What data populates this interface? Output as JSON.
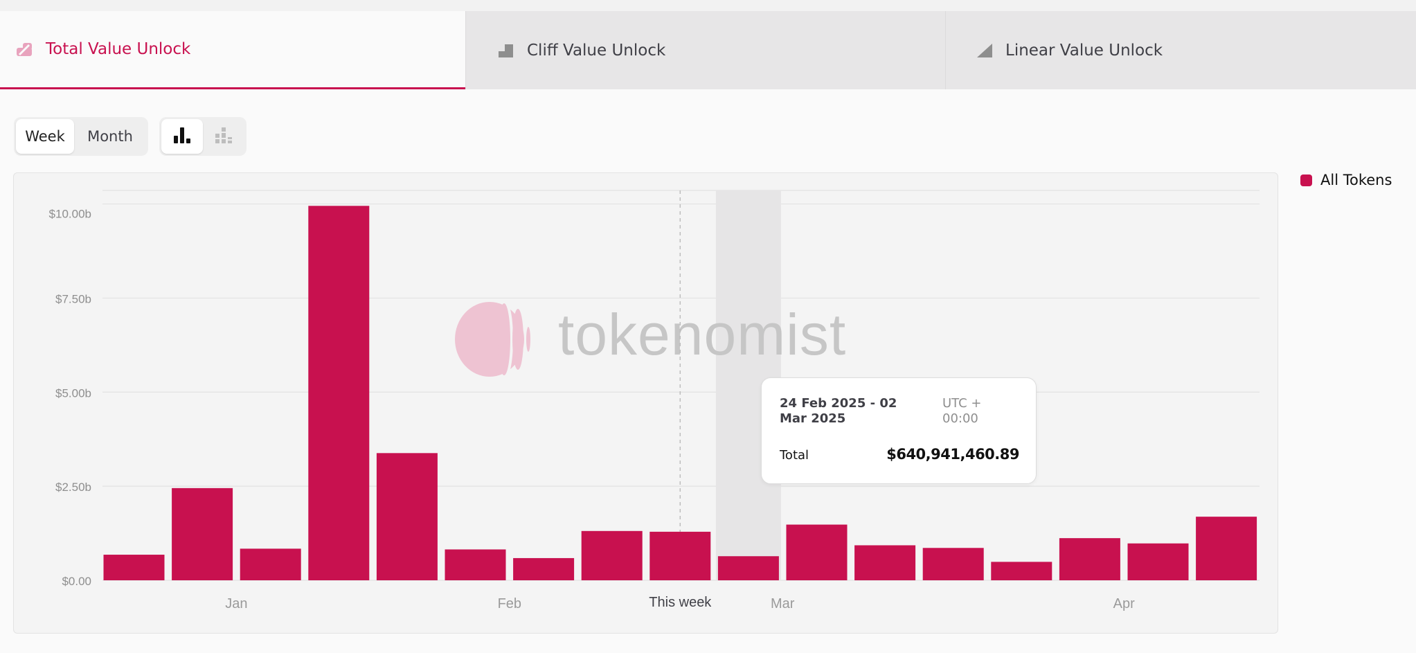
{
  "tabs": [
    {
      "label": "Total Value Unlock",
      "icon": "total-unlock-icon",
      "active": true
    },
    {
      "label": "Cliff Value Unlock",
      "icon": "cliff-unlock-icon",
      "active": false
    },
    {
      "label": "Linear Value Unlock",
      "icon": "linear-unlock-icon",
      "active": false
    }
  ],
  "controls": {
    "period_options": [
      "Week",
      "Month"
    ],
    "period_selected": "Week",
    "view_icons": [
      "bar-chart-icon",
      "stacked-bar-chart-icon"
    ],
    "view_selected": "bar-chart-icon"
  },
  "legend": {
    "label": "All Tokens",
    "color": "#c8114f"
  },
  "watermark": "tokenomist",
  "tooltip": {
    "range": "24 Feb 2025 - 02 Mar 2025",
    "timezone": "UTC + 00:00",
    "total_label": "Total",
    "total_value": "$640,941,460.89"
  },
  "chart_data": {
    "type": "bar",
    "series": [
      {
        "name": "All Tokens",
        "color": "#c8114f",
        "values": [
          0.68,
          2.45,
          0.84,
          9.95,
          3.38,
          0.82,
          0.59,
          1.31,
          1.29,
          0.64,
          1.48,
          0.93,
          0.86,
          0.49,
          1.12,
          0.98,
          1.69
        ]
      }
    ],
    "unit": "$ billions",
    "y_ticks": [
      "$0.00",
      "$2.50b",
      "$5.00b",
      "$7.50b",
      "$10.00b"
    ],
    "ylim": [
      0,
      10.36
    ],
    "x_labels": [
      {
        "label": "Jan",
        "bar_index": 1.5
      },
      {
        "label": "Feb",
        "bar_index": 5.5
      },
      {
        "label": "Mar",
        "bar_index": 9.5
      },
      {
        "label": "Apr",
        "bar_index": 14.5
      }
    ],
    "this_week": {
      "label": "This week",
      "bar_index": 8
    },
    "highlighted_bar_index": 9,
    "grid": true,
    "legend_position": "top-right"
  }
}
